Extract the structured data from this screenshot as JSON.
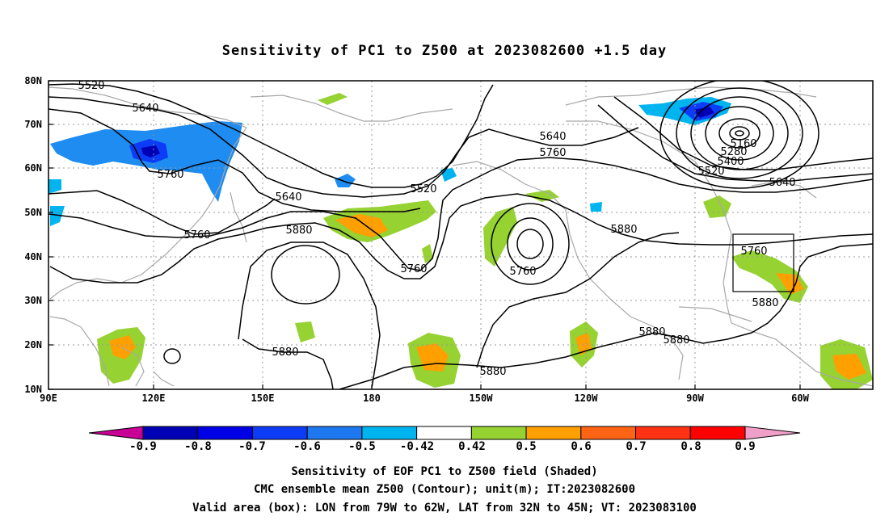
{
  "title": "Sensitivity of PC1 to Z500 at 2023082600 +1.5 day",
  "lat_labels": [
    "80N",
    "70N",
    "60N",
    "50N",
    "40N",
    "30N",
    "20N",
    "10N"
  ],
  "lon_labels": [
    "90E",
    "120E",
    "150E",
    "180",
    "150W",
    "120W",
    "90W",
    "60W"
  ],
  "contour_labels": [
    "5520",
    "5640",
    "5760",
    "5640",
    "5760",
    "5880",
    "5880",
    "5760",
    "5640",
    "5760",
    "5520",
    "5760",
    "5760",
    "5880",
    "5880",
    "5880",
    "5880",
    "5160",
    "5280",
    "5400",
    "5520",
    "5640",
    "5760",
    "5880",
    "5880"
  ],
  "colorbar": {
    "labels": [
      "-0.9",
      "-0.8",
      "-0.7",
      "-0.6",
      "-0.5",
      "-0.42",
      "0.42",
      "0.5",
      "0.6",
      "0.7",
      "0.8",
      "0.9"
    ],
    "colors": [
      "#c80096",
      "#0000b4",
      "#0000e6",
      "#0c3cf5",
      "#1e78f0",
      "#00b4f0",
      "#ffffff",
      "#96d232",
      "#ffa000",
      "#ff6414",
      "#ff3214",
      "#ff0000",
      "#f0a0c8"
    ]
  },
  "captions": [
    "Sensitivity of EOF PC1 to Z500 field (Shaded)",
    "CMC ensemble mean Z500 (Contour); unit(m); IT:2023082600",
    "Valid area (box): LON from 79W to 62W, LAT from 32N to 45N; VT: 2023083100"
  ]
}
